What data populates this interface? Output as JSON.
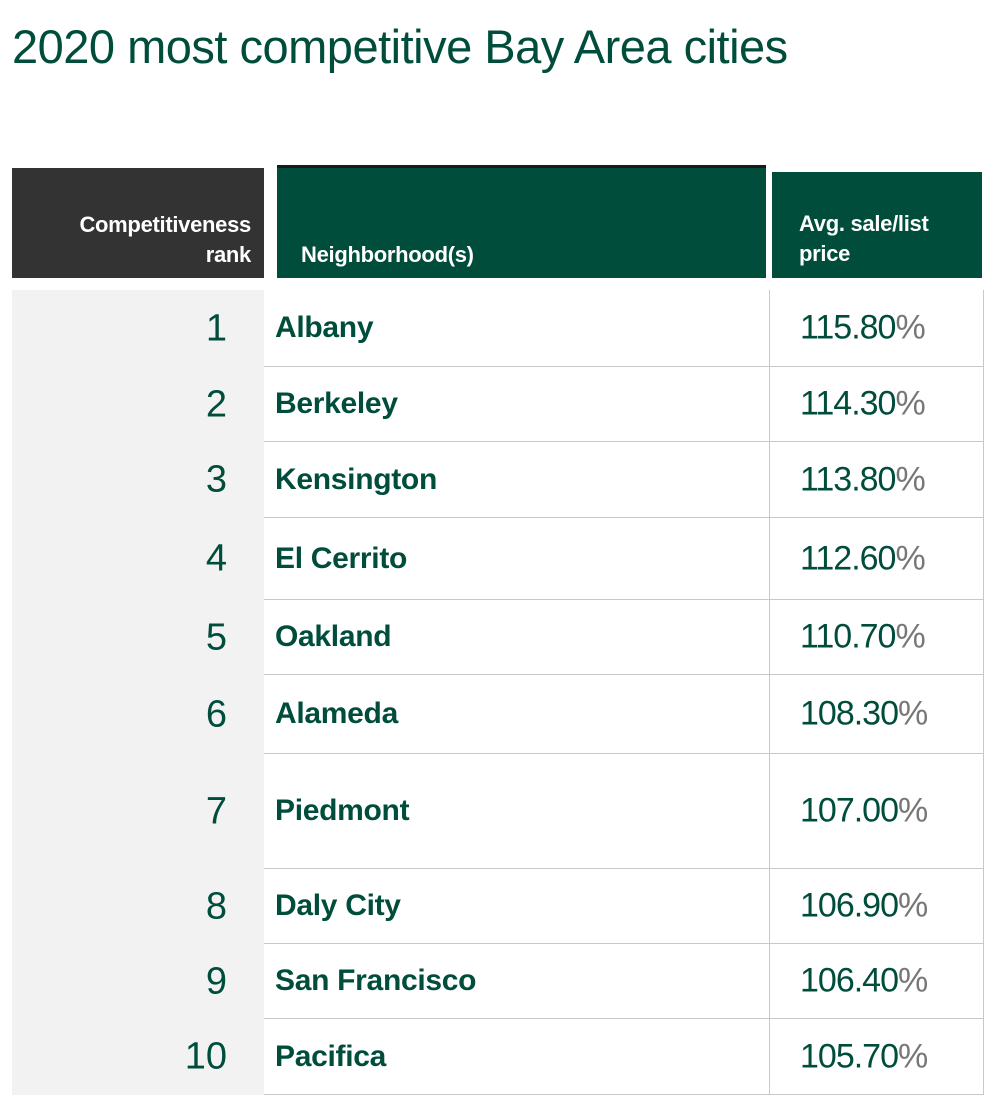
{
  "title": "2020 most competitive Bay Area cities",
  "headers": {
    "rank": [
      "Competitiveness",
      "rank"
    ],
    "neighborhood": "Neighborhood(s)",
    "price": [
      "Avg. sale/list",
      "price"
    ]
  },
  "rows": [
    {
      "rank": "1",
      "name": "Albany",
      "value": "115.80",
      "pct": "%"
    },
    {
      "rank": "2",
      "name": "Berkeley",
      "value": "114.30",
      "pct": "%"
    },
    {
      "rank": "3",
      "name": "Kensington",
      "value": "113.80",
      "pct": "%"
    },
    {
      "rank": "4",
      "name": "El Cerrito",
      "value": "112.60",
      "pct": "%"
    },
    {
      "rank": "5",
      "name": "Oakland",
      "value": "110.70",
      "pct": "%"
    },
    {
      "rank": "6",
      "name": "Alameda",
      "value": "108.30",
      "pct": "%"
    },
    {
      "rank": "7",
      "name": "Piedmont",
      "value": "107.00",
      "pct": "%"
    },
    {
      "rank": "8",
      "name": "Daly City",
      "value": "106.90",
      "pct": "%"
    },
    {
      "rank": "9",
      "name": "San Francisco",
      "value": "106.40",
      "pct": "%"
    },
    {
      "rank": "10",
      "name": "Pacifica",
      "value": "105.70",
      "pct": "%"
    }
  ],
  "colors": {
    "accent_green": "#004d3c",
    "header_dark": "#333333",
    "rank_column_bg": "#f2f2f2",
    "percent_gray": "#777777"
  }
}
